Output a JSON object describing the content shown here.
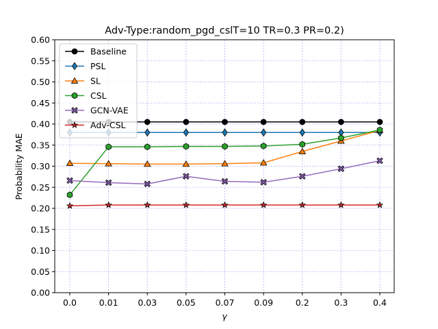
{
  "chart_data": {
    "type": "line",
    "title": "Adv-Type:random_pgd_cslT=10 TR=0.3 PR=0.2)",
    "xlabel": "γ",
    "ylabel": "Probability MAE",
    "categories": [
      "0.0",
      "0.01",
      "0.03",
      "0.05",
      "0.07",
      "0.09",
      "0.2",
      "0.3",
      "0.4"
    ],
    "ylim": [
      0.0,
      0.6
    ],
    "yticks": [
      "0.00",
      "0.05",
      "0.10",
      "0.15",
      "0.20",
      "0.25",
      "0.30",
      "0.35",
      "0.40",
      "0.45",
      "0.50",
      "0.55",
      "0.60"
    ],
    "grid": true,
    "legend_position": "top-left",
    "series": [
      {
        "name": "Baseline",
        "color": "#000000",
        "marker": "circle",
        "values": [
          0.405,
          0.405,
          0.405,
          0.405,
          0.405,
          0.405,
          0.405,
          0.405,
          0.405
        ]
      },
      {
        "name": "PSL",
        "color": "#1f77b4",
        "marker": "thin-diamond",
        "values": [
          0.38,
          0.38,
          0.38,
          0.38,
          0.38,
          0.38,
          0.38,
          0.38,
          0.38
        ]
      },
      {
        "name": "SL",
        "color": "#ff7f0e",
        "marker": "triangle",
        "values": [
          0.307,
          0.306,
          0.305,
          0.305,
          0.306,
          0.308,
          0.335,
          0.36,
          0.385
        ]
      },
      {
        "name": "CSL",
        "color": "#2ca02c",
        "marker": "hexagon",
        "values": [
          0.232,
          0.346,
          0.346,
          0.347,
          0.347,
          0.348,
          0.352,
          0.367,
          0.386
        ]
      },
      {
        "name": "GCN-VAE",
        "color": "#9467bd",
        "marker": "x-filled",
        "values": [
          0.266,
          0.261,
          0.258,
          0.276,
          0.264,
          0.262,
          0.276,
          0.294,
          0.313
        ]
      },
      {
        "name": "Adv-CSL",
        "color": "#d62728",
        "marker": "star",
        "values": [
          0.206,
          0.208,
          0.208,
          0.208,
          0.208,
          0.208,
          0.208,
          0.208,
          0.208
        ]
      }
    ]
  }
}
